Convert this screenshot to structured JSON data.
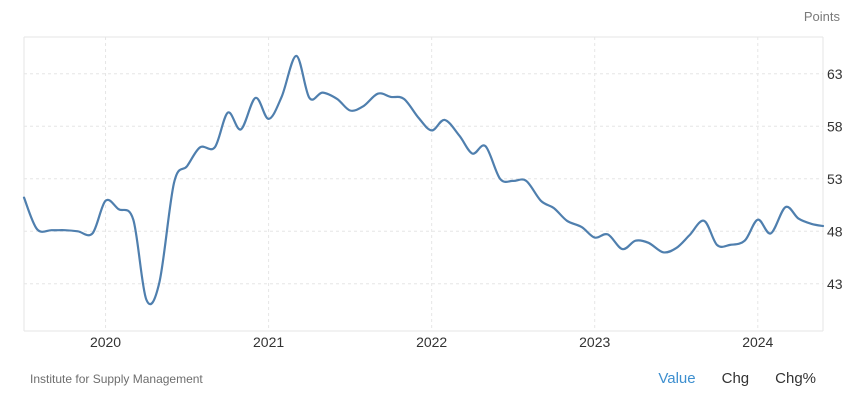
{
  "unit_label": "Points",
  "source": "Institute for Supply Management",
  "tabs": [
    {
      "label": "Value",
      "active": true
    },
    {
      "label": "Chg",
      "active": false
    },
    {
      "label": "Chg%",
      "active": false
    }
  ],
  "colors": {
    "line": "#4f7fae",
    "grid": "#e6e6e6",
    "axis_text": "#333333",
    "active_tab": "#3d8fcf"
  },
  "chart_data": {
    "type": "line",
    "title": "",
    "xlabel": "",
    "ylabel": "Points",
    "xlim": [
      2019.5,
      2024.4
    ],
    "ylim": [
      38.5,
      66.5
    ],
    "x_ticks": [
      2020,
      2021,
      2022,
      2023,
      2024
    ],
    "x_tick_labels": [
      "2020",
      "2021",
      "2022",
      "2023",
      "2024"
    ],
    "y_ticks": [
      43,
      48,
      53,
      58,
      63
    ],
    "series": [
      {
        "name": "Value",
        "x": [
          2019.5,
          2019.58,
          2019.67,
          2019.75,
          2019.83,
          2019.92,
          2020.0,
          2020.08,
          2020.17,
          2020.25,
          2020.33,
          2020.42,
          2020.5,
          2020.58,
          2020.67,
          2020.75,
          2020.83,
          2020.92,
          2021.0,
          2021.08,
          2021.17,
          2021.25,
          2021.33,
          2021.42,
          2021.5,
          2021.58,
          2021.67,
          2021.75,
          2021.83,
          2021.92,
          2022.0,
          2022.08,
          2022.17,
          2022.25,
          2022.33,
          2022.42,
          2022.5,
          2022.58,
          2022.67,
          2022.75,
          2022.83,
          2022.92,
          2023.0,
          2023.08,
          2023.17,
          2023.25,
          2023.33,
          2023.42,
          2023.5,
          2023.58,
          2023.67,
          2023.75,
          2023.83,
          2023.92,
          2024.0,
          2024.08,
          2024.17,
          2024.25,
          2024.33,
          2024.4
        ],
        "y": [
          51.2,
          48.2,
          48.1,
          48.1,
          48.0,
          47.8,
          50.9,
          50.1,
          49.1,
          41.5,
          43.1,
          52.6,
          54.2,
          56.0,
          56.0,
          59.3,
          57.7,
          60.7,
          58.7,
          60.8,
          64.7,
          60.7,
          61.2,
          60.6,
          59.5,
          59.9,
          61.1,
          60.8,
          60.6,
          58.8,
          57.6,
          58.6,
          57.1,
          55.4,
          56.1,
          53.0,
          52.8,
          52.8,
          50.9,
          50.2,
          49.0,
          48.4,
          47.4,
          47.7,
          46.3,
          47.1,
          46.9,
          46.0,
          46.4,
          47.6,
          49.0,
          46.7,
          46.7,
          47.1,
          49.1,
          47.8,
          50.3,
          49.2,
          48.7,
          48.5
        ]
      }
    ]
  }
}
